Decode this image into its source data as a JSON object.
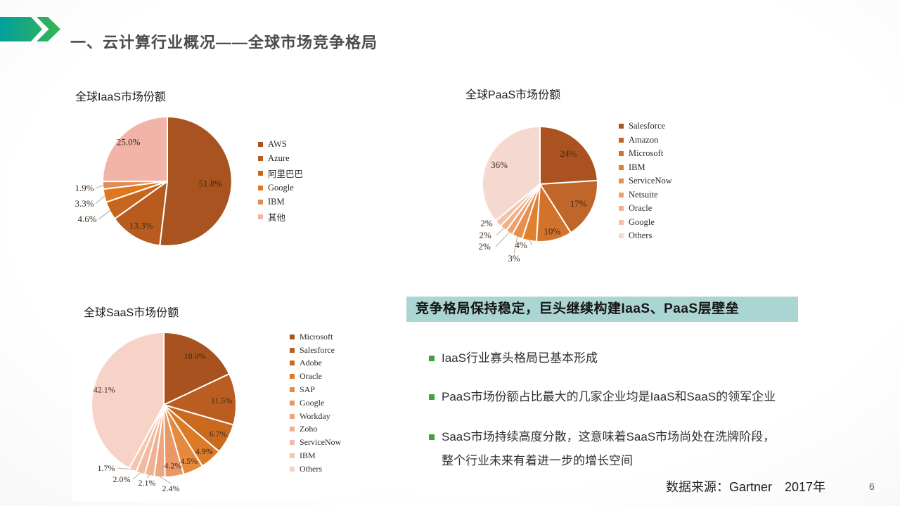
{
  "header": {
    "title": "一、云计算行业概况——全球市场竞争格局"
  },
  "colors": {
    "arrow_teal": "#01a09e",
    "arrow_green": "#3cb54b",
    "title_gray": "#4c4c4c",
    "banner_bg": "#abd5d3",
    "bullet_green": "#3fa23f"
  },
  "chart_data": [
    {
      "type": "pie",
      "title": "全球IaaS市场份额",
      "legend_position": "right",
      "slices": [
        {
          "label": "AWS",
          "value": 51.8,
          "display": "51.8%",
          "color": "#a95420",
          "label_r": 0.67
        },
        {
          "label": "Azure",
          "value": 13.3,
          "display": "13.3%",
          "color": "#b75b1e",
          "label_r": 0.8
        },
        {
          "label": "阿里巴巴",
          "value": 4.6,
          "display": "4.6%",
          "color": "#c6651e",
          "label_xy": [
            31,
            194
          ]
        },
        {
          "label": "Google",
          "value": 3.3,
          "display": "3.3%",
          "color": "#e0771f",
          "label_xy": [
            27,
            172
          ]
        },
        {
          "label": "IBM",
          "value": 1.9,
          "display": "1.9%",
          "color": "#e18b55",
          "label_xy": [
            27,
            150
          ]
        },
        {
          "label": "其他",
          "value": 25.0,
          "display": "25.0%",
          "color": "#f2b4a8",
          "label_r": 0.85
        }
      ]
    },
    {
      "type": "pie",
      "title": "全球PaaS市场份额",
      "legend_position": "right",
      "slices": [
        {
          "label": "Salesforce",
          "value": 24,
          "display": "24%",
          "color": "#aa5320",
          "label_r": 0.72
        },
        {
          "label": "Amazon",
          "value": 17,
          "display": "17%",
          "color": "#c0662a",
          "label_r": 0.75
        },
        {
          "label": "Microsoft",
          "value": 10,
          "display": "10%",
          "color": "#d3722a",
          "label_r": 0.85
        },
        {
          "label": "IBM",
          "value": 4,
          "display": "4%",
          "color": "#e0812f",
          "label_xy": [
            96,
            233
          ]
        },
        {
          "label": "ServiceNow",
          "value": 3,
          "display": "3%",
          "color": "#e78f4d",
          "label_xy": [
            86,
            252
          ]
        },
        {
          "label": "Netsuite",
          "value": 2,
          "display": "2%",
          "color": "#eca06d",
          "label_xy": [
            44,
            235
          ]
        },
        {
          "label": "Oracle",
          "value": 2,
          "display": "2%",
          "color": "#f0b28d",
          "label_xy": [
            45,
            219
          ]
        },
        {
          "label": "Google",
          "value": 2,
          "display": "2%",
          "color": "#f3c1a5",
          "label_xy": [
            47,
            202
          ]
        },
        {
          "label": "Others",
          "value": 36,
          "display": "36%",
          "color": "#f5d9d1",
          "label_r": 0.78
        }
      ]
    },
    {
      "type": "pie",
      "title": "全球SaaS市场份额",
      "legend_position": "right",
      "slices": [
        {
          "label": "Microsoft",
          "value": 18.0,
          "display": "18.0%",
          "color": "#a8521f",
          "label_r": 0.8
        },
        {
          "label": "Salesforce",
          "value": 11.5,
          "display": "11.5%",
          "color": "#b95e20",
          "label_r": 0.8
        },
        {
          "label": "Adobe",
          "value": 6.7,
          "display": "6.7%",
          "color": "#c96a1f",
          "label_r": 0.85
        },
        {
          "label": "Oracle",
          "value": 4.9,
          "display": "4.9%",
          "color": "#dc7a25",
          "label_r": 0.85
        },
        {
          "label": "SAP",
          "value": 4.5,
          "display": "4.5%",
          "color": "#e5893c",
          "label_r": 0.85
        },
        {
          "label": "Google",
          "value": 4.2,
          "display": "4.2%",
          "color": "#ea9765",
          "label_r": 0.85
        },
        {
          "label": "Workday",
          "value": 2.4,
          "display": "2.4%",
          "color": "#eda57e",
          "label_xy": [
            140,
            270
          ]
        },
        {
          "label": "Zoho",
          "value": 2.1,
          "display": "2.1%",
          "color": "#f0b092",
          "label_xy": [
            106,
            262
          ]
        },
        {
          "label": "ServiceNow",
          "value": 2.0,
          "display": "2.0%",
          "color": "#f2baa1",
          "label_xy": [
            70,
            257
          ]
        },
        {
          "label": "IBM",
          "value": 1.7,
          "display": "1.7%",
          "color": "#f4c5af",
          "label_xy": [
            48,
            241
          ]
        },
        {
          "label": "Others",
          "value": 42.1,
          "display": "42.1%",
          "color": "#f7d2c6",
          "label_r": 0.85
        }
      ]
    }
  ],
  "insight": {
    "banner": "竞争格局保持稳定，巨头继续构建IaaS、PaaS层壁垒",
    "bullets": [
      {
        "text": "IaaS行业寡头格局已基本形成"
      },
      {
        "text": "PaaS市场份额占比最大的几家企业均是IaaS和SaaS的领军企业"
      },
      {
        "text": "SaaS市场持续高度分散，这意味着SaaS市场尚处在洗牌阶段，",
        "text2": "整个行业未来有着进一步的增长空间"
      }
    ]
  },
  "footer": {
    "source": "数据来源：Gartner　2017年",
    "page_number": "6"
  }
}
